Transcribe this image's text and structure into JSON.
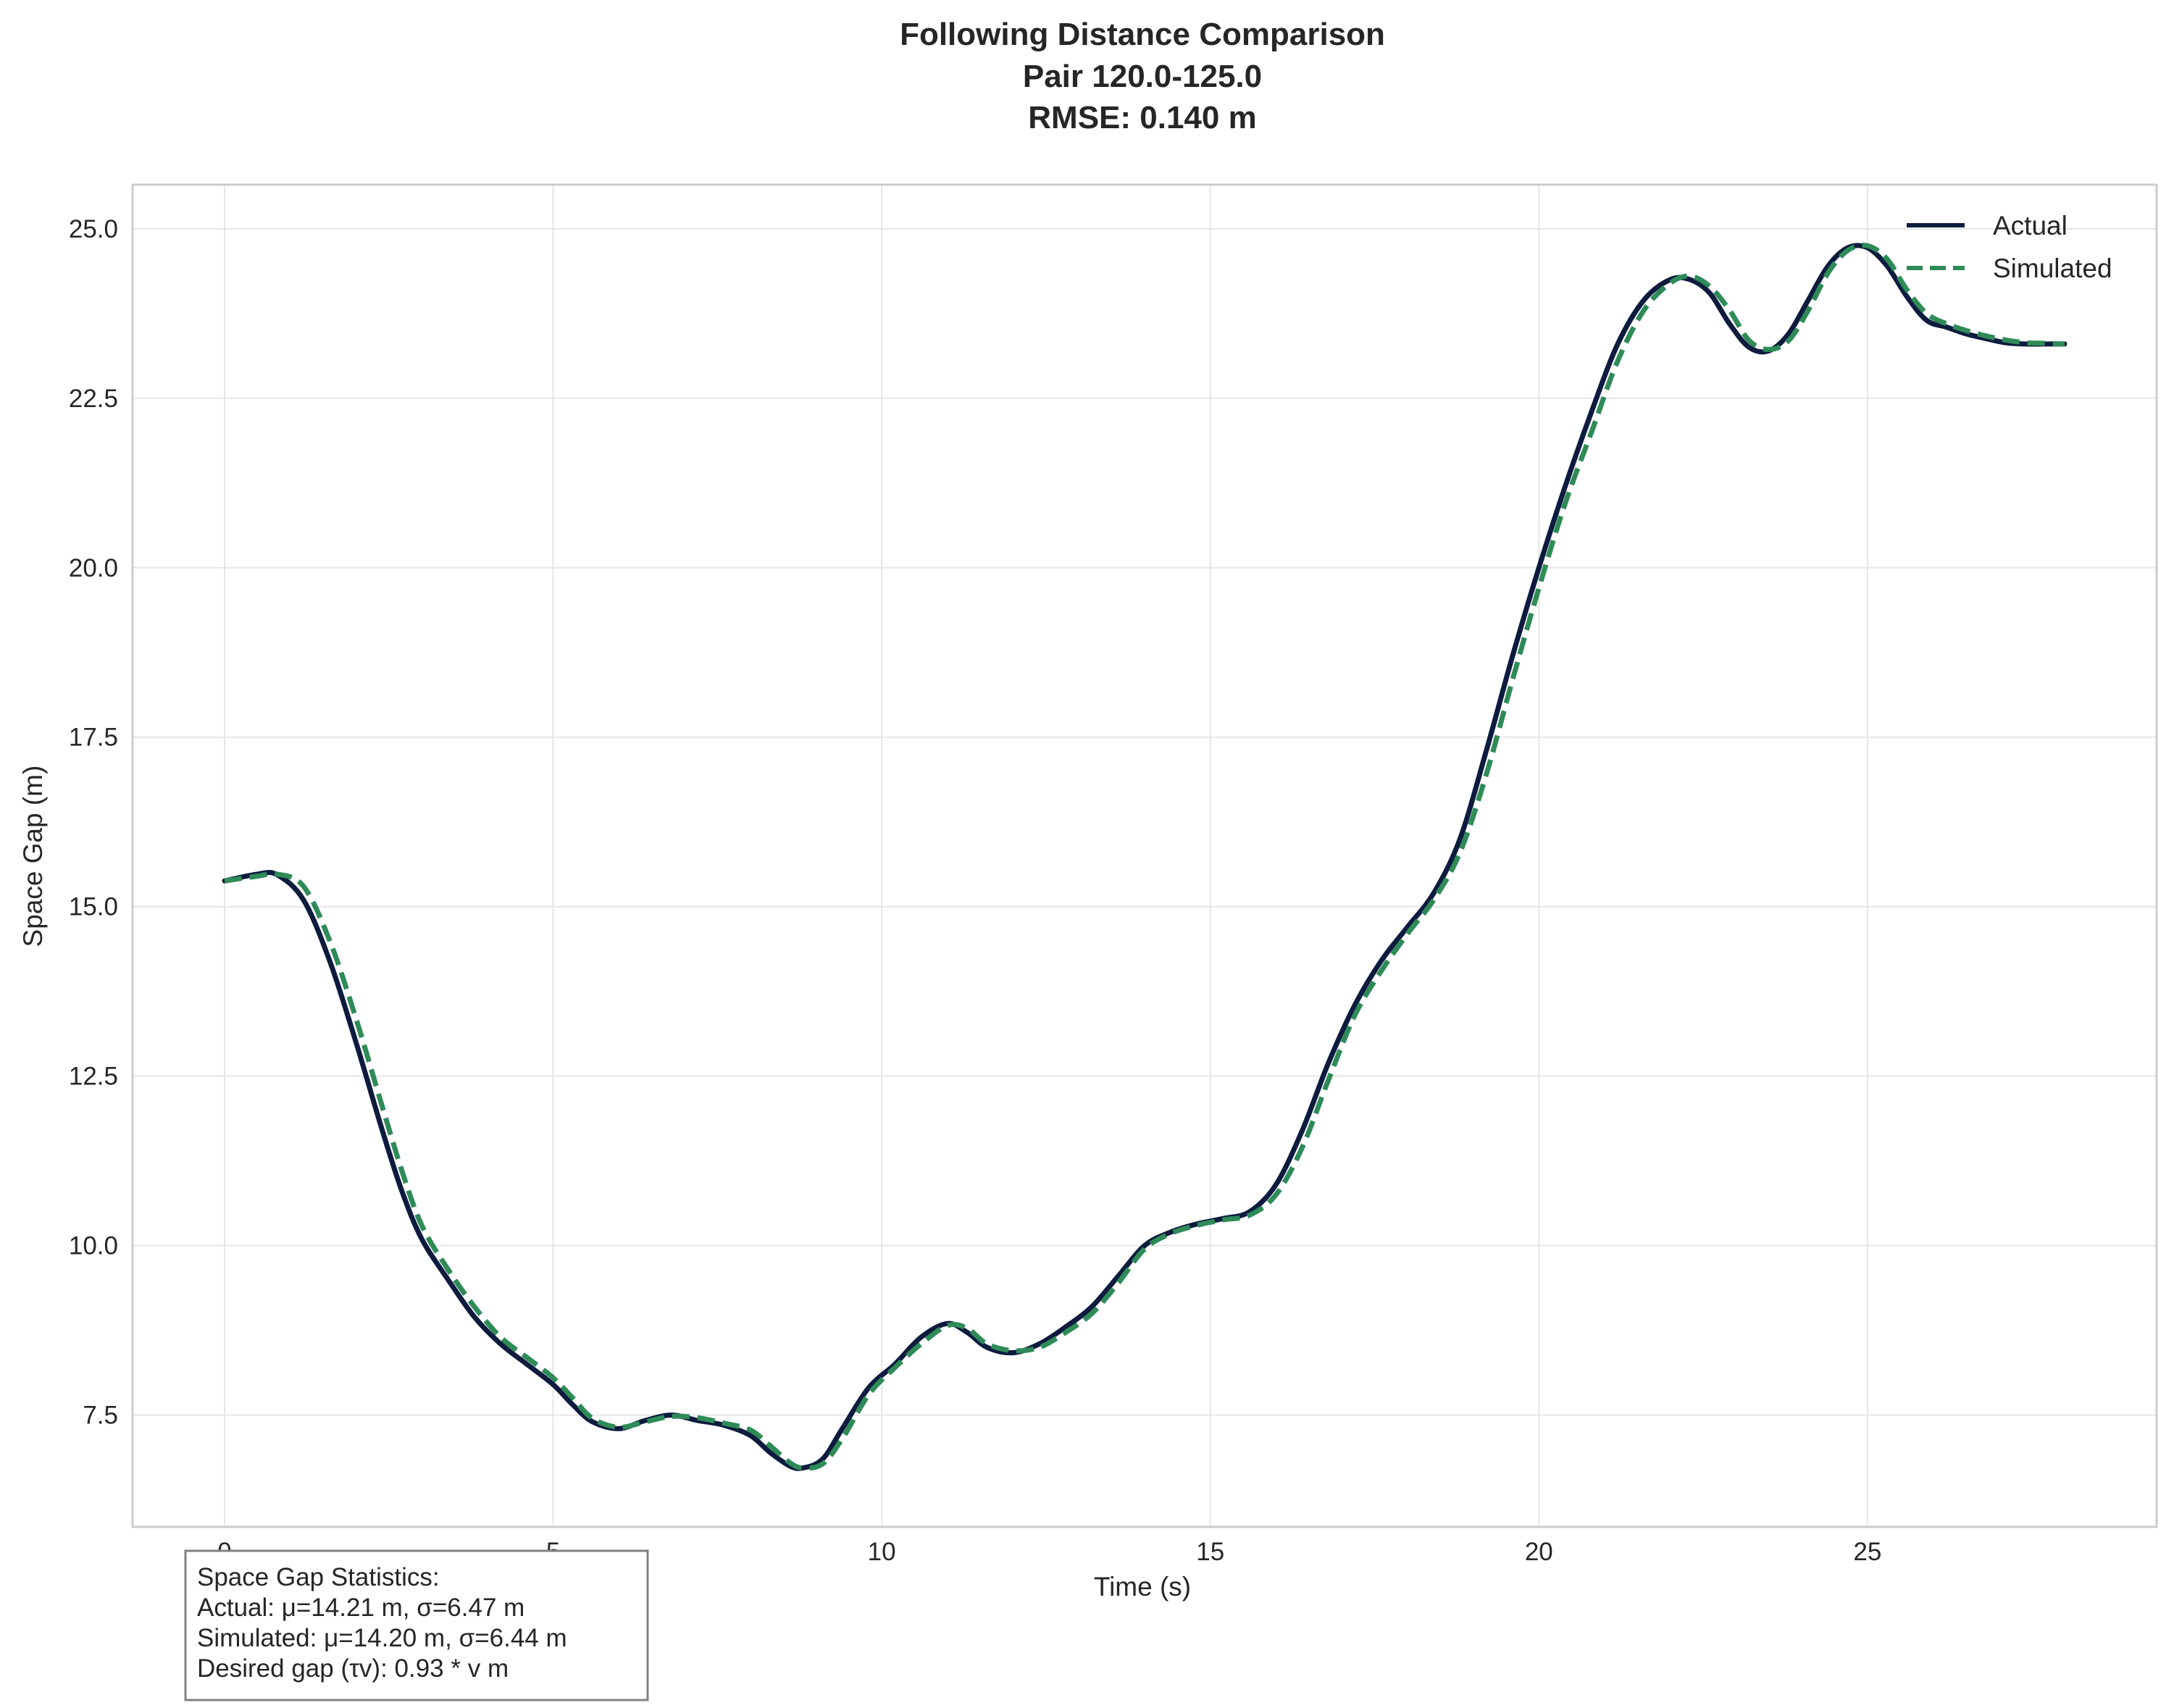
{
  "chart_data": {
    "type": "line",
    "title_lines": [
      "Following Distance Comparison",
      "Pair 120.0-125.0",
      "RMSE: 0.140 m"
    ],
    "xlabel": "Time (s)",
    "ylabel": "Space Gap (m)",
    "xlim": [
      -1.4,
      29.4
    ],
    "ylim": [
      5.85,
      25.65
    ],
    "xticks": [
      0,
      5,
      10,
      15,
      20,
      25
    ],
    "xtick_labels": [
      "0",
      "5",
      "10",
      "15",
      "20",
      "25"
    ],
    "yticks": [
      7.5,
      10.0,
      12.5,
      15.0,
      17.5,
      20.0,
      22.5,
      25.0
    ],
    "ytick_labels": [
      "7.5",
      "10.0",
      "12.5",
      "15.0",
      "17.5",
      "20.0",
      "22.5",
      "25.0"
    ],
    "grid": true,
    "legend_position": "top-right",
    "series": [
      {
        "name": "Actual",
        "color": "#0d1b3e",
        "style": "solid",
        "x": [
          0,
          0.5,
          0.8,
          1.2,
          1.6,
          2.0,
          2.4,
          2.7,
          3.0,
          3.4,
          3.8,
          4.2,
          4.6,
          5.0,
          5.3,
          5.6,
          6.0,
          6.4,
          6.8,
          7.2,
          7.6,
          8.0,
          8.3,
          8.6,
          8.8,
          9.1,
          9.4,
          9.8,
          10.2,
          10.6,
          11.0,
          11.3,
          11.6,
          12.0,
          12.4,
          12.8,
          13.2,
          13.6,
          14.0,
          14.4,
          14.8,
          15.2,
          15.6,
          16.0,
          16.4,
          16.8,
          17.2,
          17.6,
          18.0,
          18.4,
          18.8,
          19.2,
          19.6,
          20.0,
          20.4,
          20.8,
          21.2,
          21.6,
          22.0,
          22.3,
          22.6,
          22.9,
          23.2,
          23.5,
          23.8,
          24.1,
          24.4,
          24.7,
          25.0,
          25.3,
          25.6,
          25.9,
          26.2,
          26.5,
          26.8,
          27.1,
          27.4,
          27.7,
          28.0
        ],
        "y": [
          15.38,
          15.48,
          15.47,
          15.1,
          14.2,
          13.0,
          11.7,
          10.8,
          10.1,
          9.5,
          8.95,
          8.55,
          8.25,
          7.95,
          7.65,
          7.4,
          7.3,
          7.42,
          7.5,
          7.42,
          7.35,
          7.2,
          6.95,
          6.75,
          6.72,
          6.85,
          7.3,
          7.9,
          8.25,
          8.65,
          8.85,
          8.72,
          8.5,
          8.42,
          8.55,
          8.8,
          9.1,
          9.55,
          10.0,
          10.2,
          10.32,
          10.4,
          10.5,
          10.9,
          11.7,
          12.7,
          13.55,
          14.2,
          14.7,
          15.2,
          16.0,
          17.3,
          18.7,
          20.0,
          21.2,
          22.3,
          23.3,
          23.95,
          24.25,
          24.25,
          24.05,
          23.6,
          23.25,
          23.2,
          23.45,
          23.95,
          24.45,
          24.72,
          24.72,
          24.45,
          24.0,
          23.65,
          23.55,
          23.45,
          23.38,
          23.32,
          23.3,
          23.3,
          23.3
        ]
      },
      {
        "name": "Simulated",
        "color": "#2e8b57",
        "style": "dashed",
        "x": [
          0,
          0.5,
          0.8,
          1.2,
          1.6,
          2.0,
          2.4,
          2.7,
          3.0,
          3.4,
          3.8,
          4.2,
          4.6,
          5.0,
          5.3,
          5.6,
          6.0,
          6.4,
          6.8,
          7.2,
          7.6,
          8.0,
          8.3,
          8.6,
          8.8,
          9.1,
          9.4,
          9.8,
          10.2,
          10.6,
          11.0,
          11.3,
          11.6,
          12.0,
          12.4,
          12.8,
          13.2,
          13.6,
          14.0,
          14.4,
          14.8,
          15.2,
          15.6,
          16.0,
          16.4,
          16.8,
          17.2,
          17.6,
          18.0,
          18.4,
          18.8,
          19.2,
          19.6,
          20.0,
          20.4,
          20.8,
          21.2,
          21.6,
          22.0,
          22.3,
          22.6,
          22.9,
          23.2,
          23.5,
          23.8,
          24.1,
          24.4,
          24.7,
          25.0,
          25.3,
          25.6,
          25.9,
          26.2,
          26.5,
          26.8,
          27.1,
          27.4,
          27.7,
          28.0
        ],
        "y": [
          15.38,
          15.45,
          15.48,
          15.3,
          14.5,
          13.35,
          12.05,
          11.1,
          10.3,
          9.65,
          9.1,
          8.65,
          8.35,
          8.05,
          7.75,
          7.45,
          7.32,
          7.4,
          7.48,
          7.46,
          7.38,
          7.28,
          7.05,
          6.8,
          6.72,
          6.78,
          7.15,
          7.8,
          8.2,
          8.55,
          8.82,
          8.78,
          8.55,
          8.45,
          8.5,
          8.72,
          9.0,
          9.45,
          9.95,
          10.18,
          10.3,
          10.38,
          10.45,
          10.75,
          11.45,
          12.45,
          13.4,
          14.05,
          14.6,
          15.1,
          15.8,
          16.95,
          18.35,
          19.7,
          20.95,
          22.0,
          23.05,
          23.8,
          24.2,
          24.3,
          24.15,
          23.8,
          23.35,
          23.22,
          23.35,
          23.8,
          24.35,
          24.68,
          24.75,
          24.55,
          24.1,
          23.75,
          23.6,
          23.5,
          23.42,
          23.36,
          23.32,
          23.31,
          23.3
        ]
      }
    ]
  },
  "stats_box": {
    "lines": [
      "Space Gap Statistics:",
      "Actual: μ=14.21 m, σ=6.47 m",
      "Simulated: μ=14.20 m, σ=6.44 m",
      "Desired gap (τv): 0.93 * v m"
    ]
  }
}
